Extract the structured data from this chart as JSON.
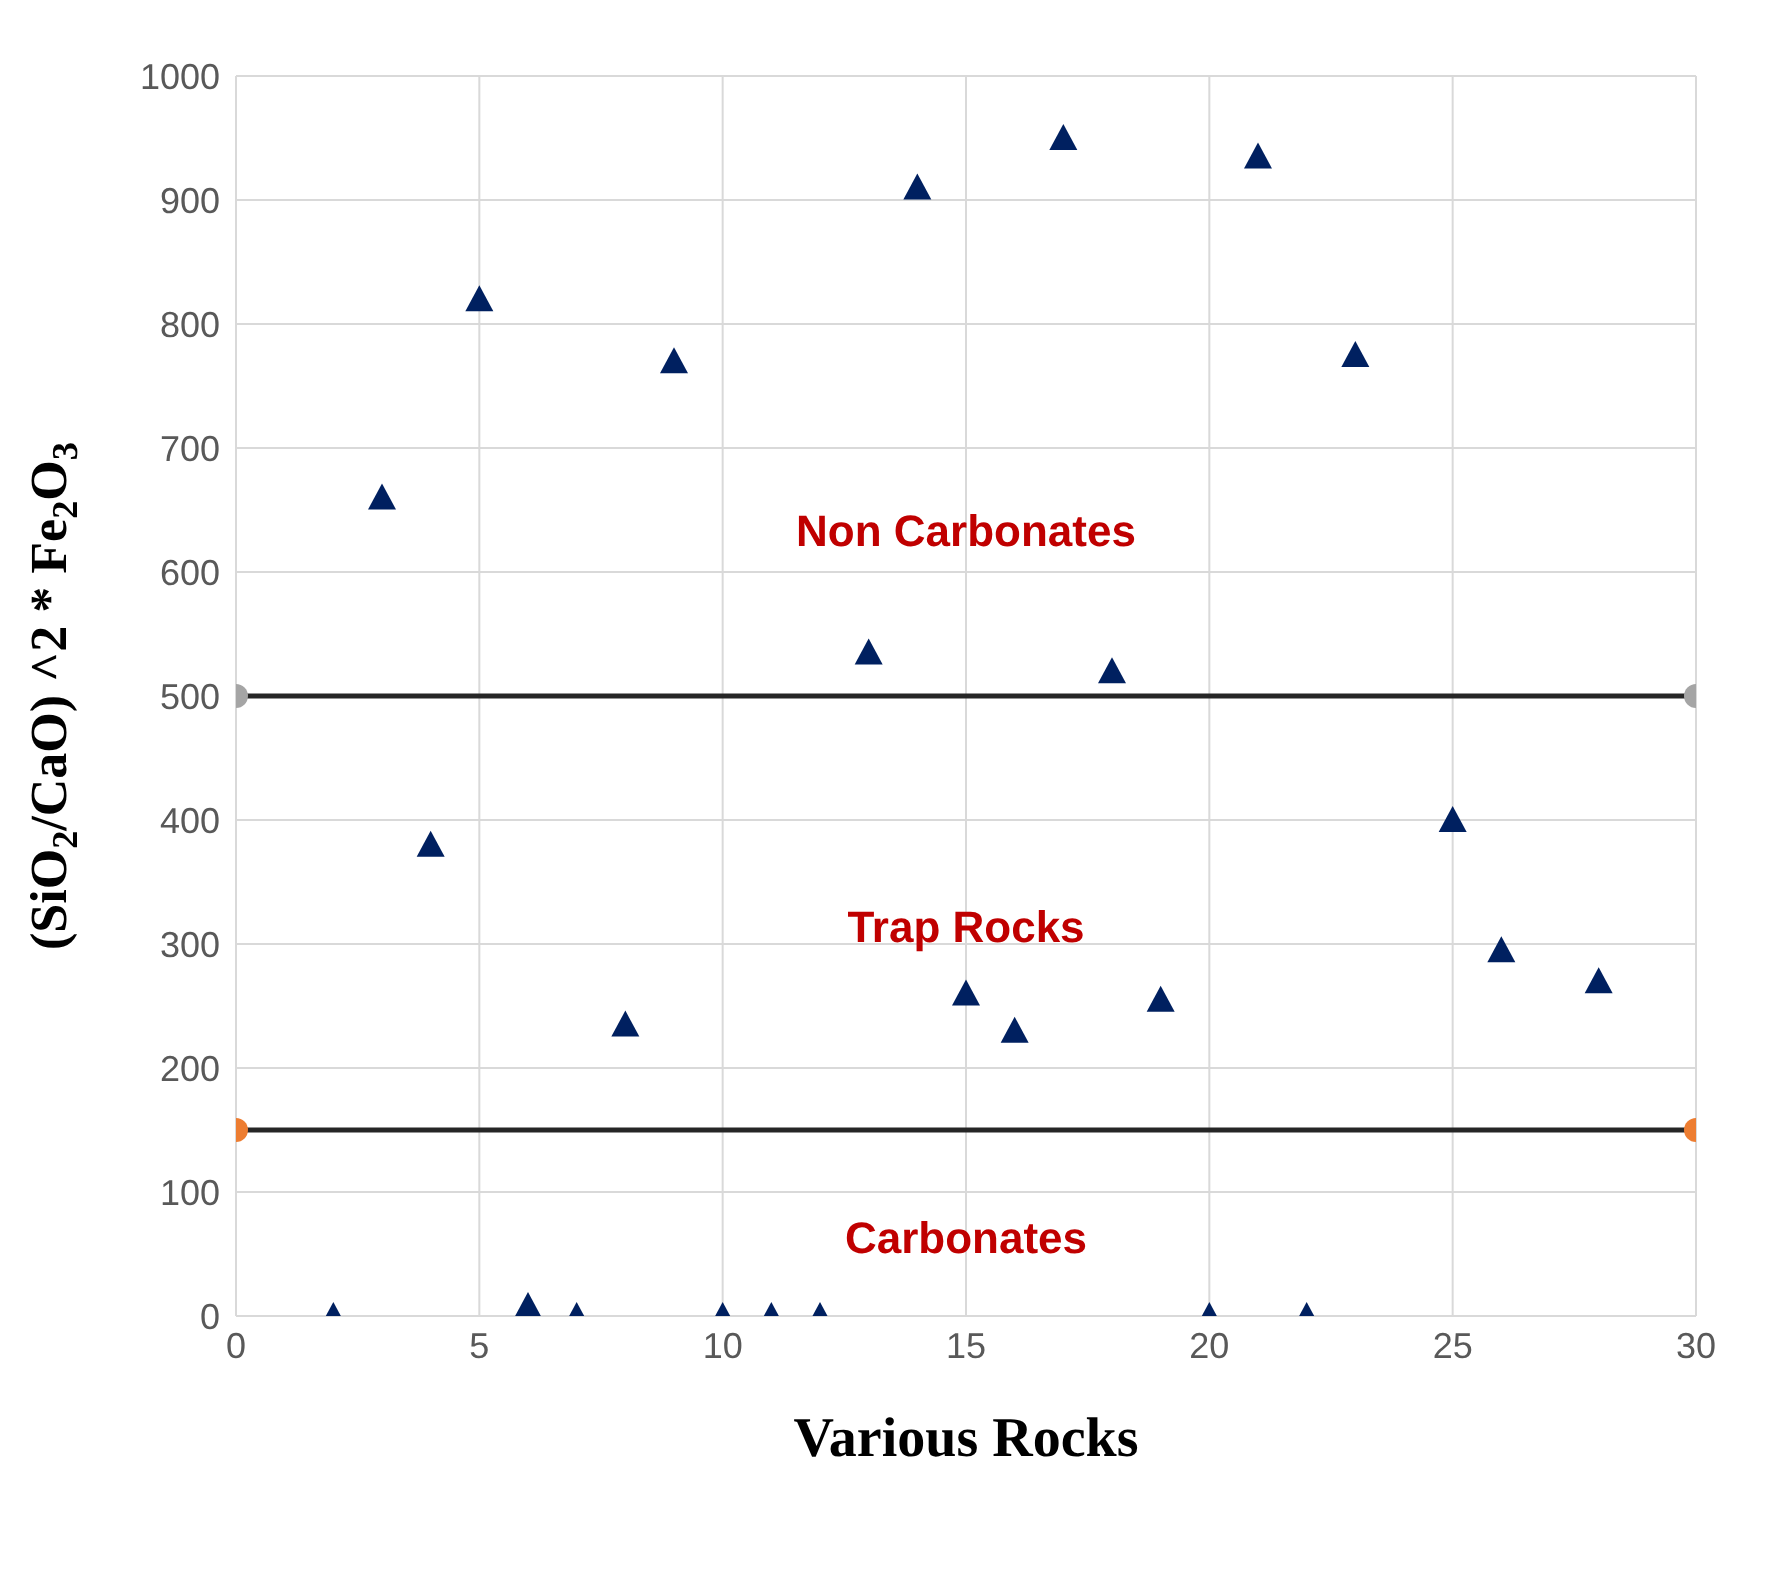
{
  "chart_data": {
    "type": "scatter",
    "xlabel": "Various Rocks",
    "ylabel": "(SiO$_{2}$/CaO) ^2 * Fe$_{2}$O$_{3}$",
    "xlim": [
      0,
      30
    ],
    "xticks": [
      0,
      5,
      10,
      15,
      20,
      25,
      30
    ],
    "ylim": [
      0,
      1000
    ],
    "yticks": [
      0,
      100,
      200,
      300,
      400,
      500,
      600,
      700,
      800,
      900,
      1000
    ],
    "grid": true,
    "marker": "triangle",
    "series": [
      {
        "color": "#002060",
        "x": [
          2,
          3,
          4,
          5,
          6,
          7,
          8,
          9,
          10,
          11,
          12,
          13,
          14,
          15,
          16,
          17,
          18,
          19,
          20,
          21,
          22,
          23,
          25,
          26,
          28
        ],
        "values": [
          0,
          660,
          380,
          820,
          8,
          0,
          235,
          770,
          0,
          0,
          0,
          535,
          910,
          260,
          230,
          950,
          520,
          255,
          0,
          935,
          0,
          775,
          400,
          295,
          270
        ]
      },
      {
        "type": "line",
        "color": "#a5a5a5",
        "marker": "circle",
        "x": [
          0,
          30
        ],
        "values": [
          500,
          500
        ]
      },
      {
        "type": "line",
        "color": "#ed7d31",
        "marker": "circle",
        "x": [
          0,
          30
        ],
        "values": [
          150,
          150
        ]
      }
    ],
    "annotations": [
      "Non Carbonates",
      "Trap Rocks",
      "Carbonates"
    ]
  }
}
